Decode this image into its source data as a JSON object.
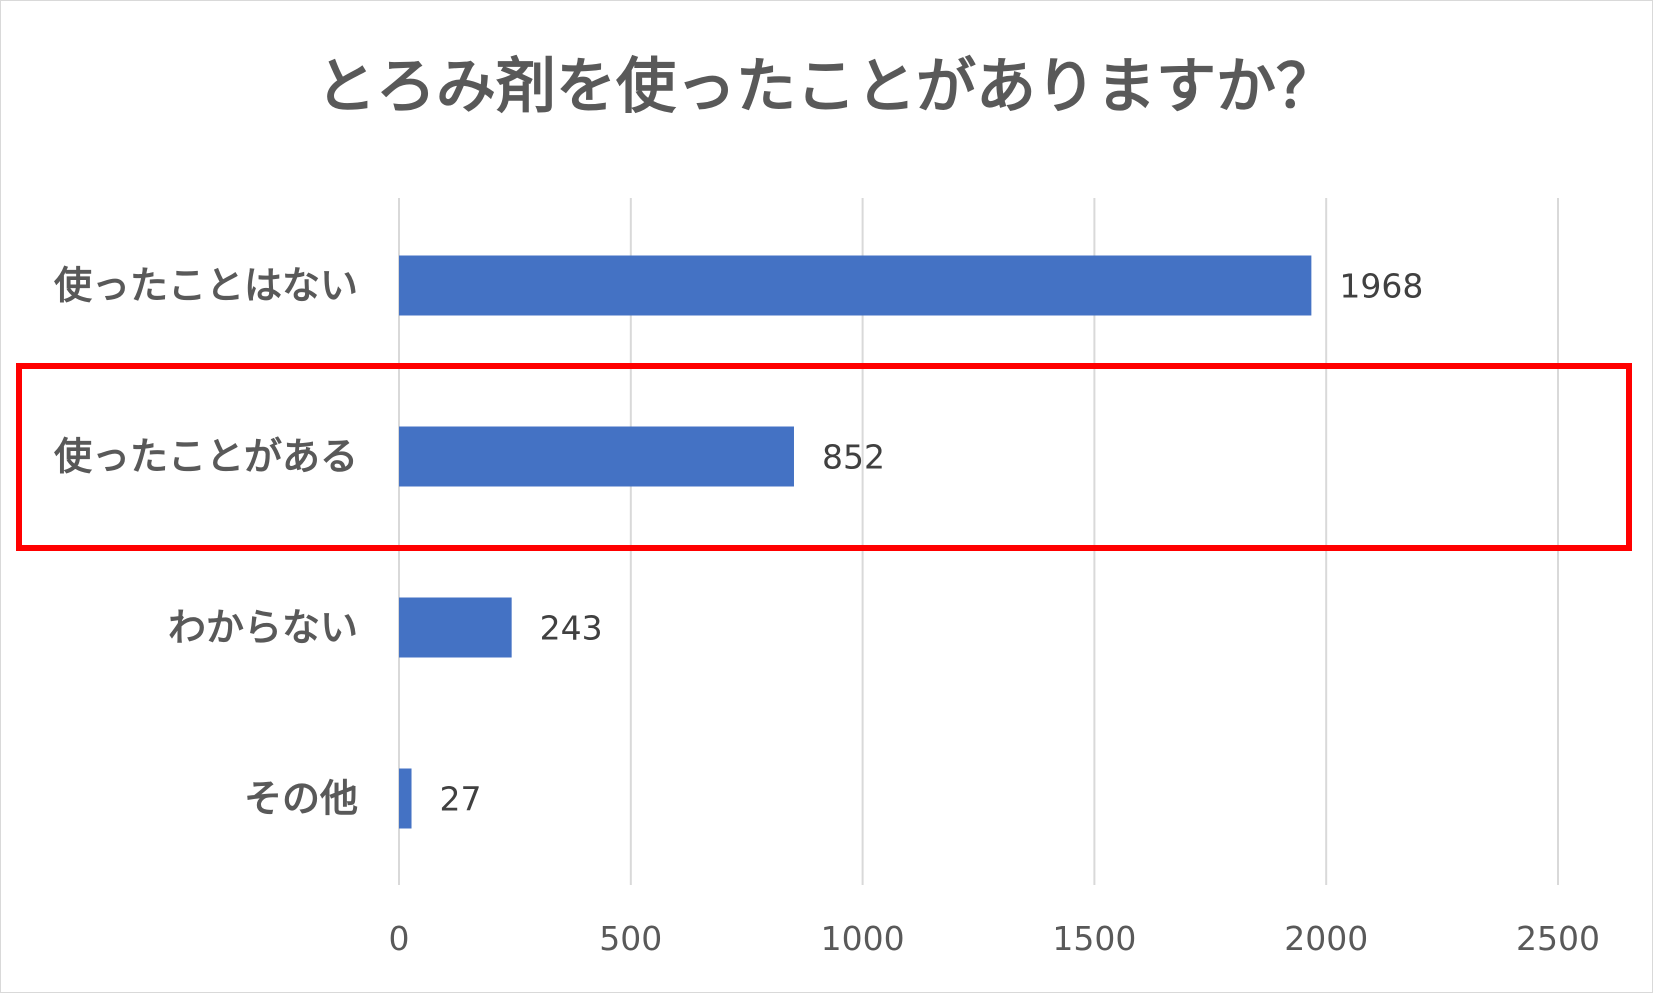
{
  "chart_data": {
    "type": "bar",
    "orientation": "horizontal",
    "title": "とろみ剤を使ったことがありますか？",
    "categories": [
      "使ったことはない",
      "使ったことがある",
      "わからない",
      "その他"
    ],
    "values": [
      1968,
      852,
      243,
      27
    ],
    "data_labels": [
      "1968",
      "852",
      "243",
      "27"
    ],
    "xlim": [
      0,
      2500
    ],
    "xticks": [
      0,
      500,
      1000,
      1500,
      2000,
      2500
    ],
    "xtick_labels": [
      "0",
      "500",
      "1000",
      "1500",
      "2000",
      "2500"
    ],
    "xlabel": "",
    "ylabel": "",
    "grid": "vertical",
    "legend": "none",
    "bar_color": "#4472c4",
    "highlight": {
      "category": "使ったことがある",
      "color": "#ff0000"
    }
  }
}
